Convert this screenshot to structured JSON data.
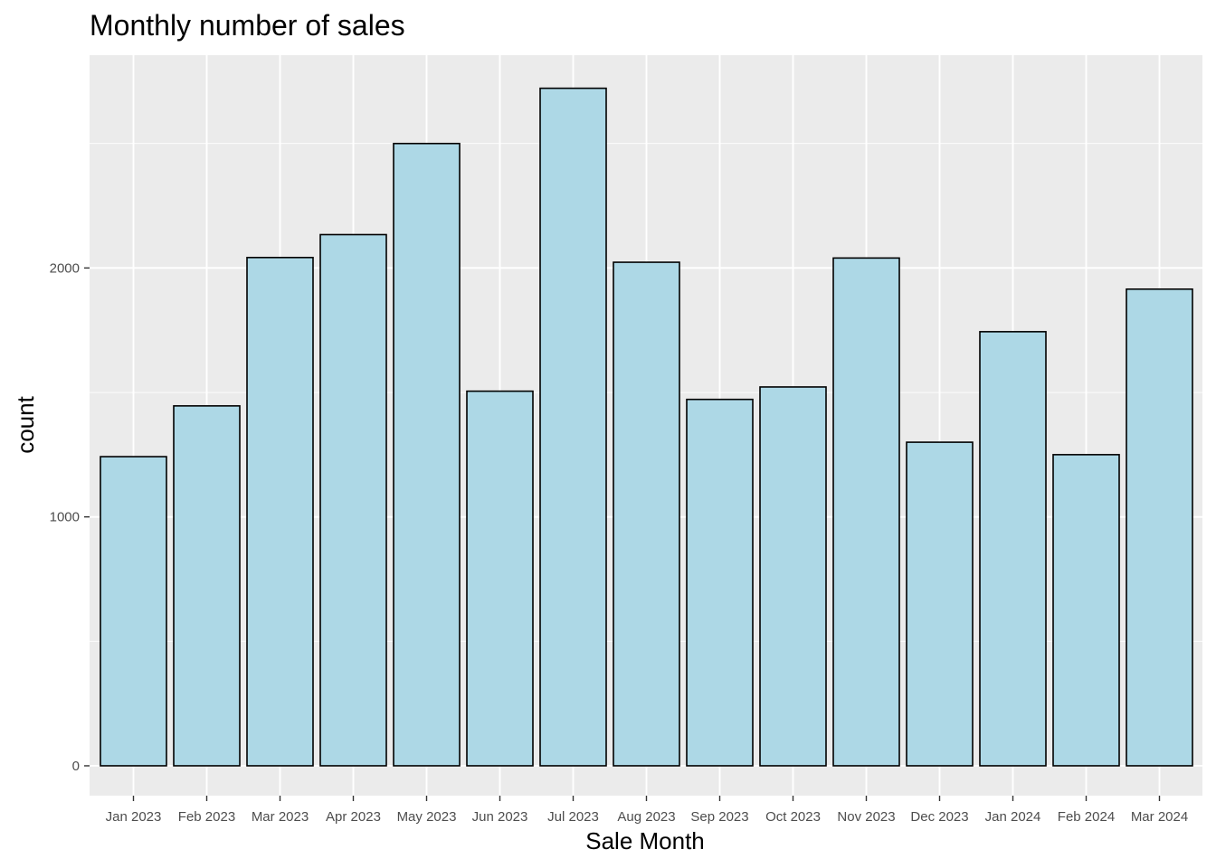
{
  "chart_data": {
    "type": "bar",
    "title": "Monthly number of sales",
    "xlabel": "Sale Month",
    "ylabel": "count",
    "categories": [
      "Jan 2023",
      "Feb 2023",
      "Mar 2023",
      "Apr 2023",
      "May 2023",
      "Jun 2023",
      "Jul 2023",
      "Aug 2023",
      "Sep 2023",
      "Oct 2023",
      "Nov 2023",
      "Dec 2023",
      "Jan 2024",
      "Feb 2024",
      "Mar 2024"
    ],
    "values": [
      1242,
      1446,
      2042,
      2134,
      2500,
      1505,
      2722,
      2023,
      1472,
      1522,
      2040,
      1300,
      1744,
      1250,
      1915
    ],
    "yticks": [
      0,
      1000,
      2000
    ],
    "ylim": [
      -120,
      2855
    ],
    "grid": true,
    "legend": "none",
    "colors": {
      "panel_background": "#ebebeb",
      "grid_line": "#ffffff",
      "bar_fill": "#add8e6",
      "bar_outline": "#000000",
      "tick_text": "#4d4d4d",
      "tick_mark": "#333333"
    }
  }
}
